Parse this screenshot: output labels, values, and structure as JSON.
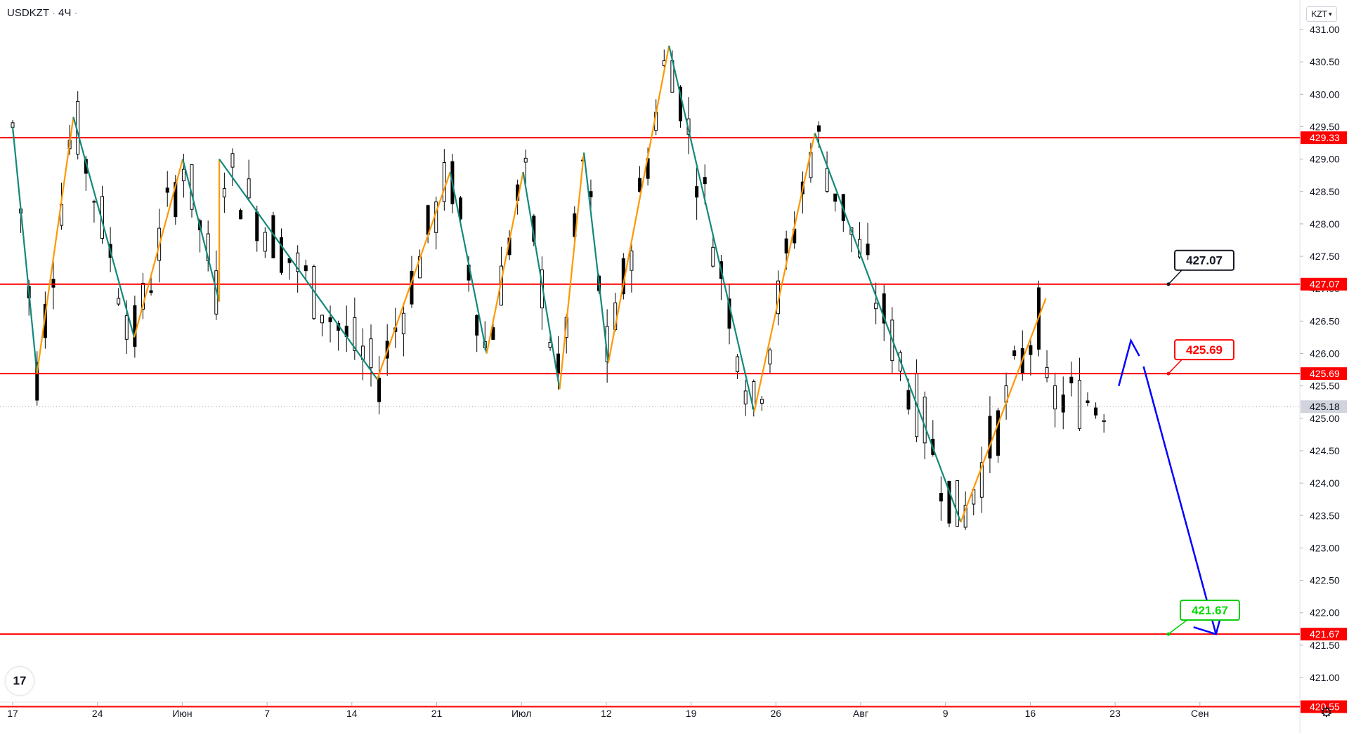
{
  "header": {
    "symbol": "USDKZT",
    "interval": "4Ч"
  },
  "currency_button": "KZT",
  "logo_text": "17",
  "icons": {
    "logo": "tradingview-logo-icon",
    "settings": "gear-icon",
    "currency_dropdown": "chevron-down-icon"
  },
  "colors": {
    "level_line": "#ff0000",
    "zigzag_up": "#ff9800",
    "zigzag_down": "#12897a",
    "forecast": "#0000ff",
    "target_label": "#00ff00",
    "candle": "#000000"
  },
  "chart_data": {
    "type": "candlestick",
    "title": "USDKZT · 4Ч",
    "ylim": [
      420.55,
      431.3
    ],
    "y_ticks": [
      "431.00",
      "430.50",
      "430.00",
      "429.50",
      "429.00",
      "428.50",
      "428.00",
      "427.50",
      "427.00",
      "426.50",
      "426.00",
      "425.50",
      "425.00",
      "424.50",
      "424.00",
      "423.50",
      "423.00",
      "422.50",
      "422.00",
      "421.50",
      "421.00"
    ],
    "x_ticks": [
      "17",
      "24",
      "Июн",
      "7",
      "14",
      "21",
      "Июл",
      "12",
      "19",
      "26",
      "Авг",
      "9",
      "16",
      "23",
      "Сен"
    ],
    "levels": [
      {
        "value": 429.33,
        "label": "429.33"
      },
      {
        "value": 427.07,
        "label": "427.07"
      },
      {
        "value": 425.69,
        "label": "425.69"
      },
      {
        "value": 421.67,
        "label": "421.67"
      },
      {
        "value": 420.55,
        "label": "420.55"
      }
    ],
    "last_price": "425.18",
    "callouts": [
      {
        "text": "427.07",
        "value": 427.07,
        "style": "black"
      },
      {
        "text": "425.69",
        "value": 425.69,
        "style": "red"
      },
      {
        "text": "421.67",
        "value": 421.67,
        "style": "green"
      }
    ],
    "zigzag": [
      [
        "May 17",
        429.5
      ],
      [
        "May 19",
        425.69
      ],
      [
        "May 22",
        429.65
      ],
      [
        "May 27",
        426.25
      ],
      [
        "May 31",
        429.0
      ],
      [
        "Jun 3",
        426.8
      ],
      [
        "Jun 3",
        429.0
      ],
      [
        "Jun 16",
        425.6
      ],
      [
        "Jun 22",
        428.8
      ],
      [
        "Jun 25",
        426.0
      ],
      [
        "Jun 28",
        428.8
      ],
      [
        "Jul 1",
        425.45
      ],
      [
        "Jul 3",
        429.1
      ],
      [
        "Jul 5",
        425.85
      ],
      [
        "Jul 10",
        430.75
      ],
      [
        "Jul 17",
        425.1
      ],
      [
        "Jul 22",
        429.4
      ],
      [
        "Aug 3",
        423.4
      ],
      [
        "Aug 10",
        426.85
      ]
    ],
    "forecast_path": [
      [
        "Aug 16",
        425.5
      ],
      [
        "Aug 17",
        426.2
      ],
      [
        "Aug 17",
        425.8
      ],
      [
        "Aug 24",
        421.67
      ]
    ]
  }
}
